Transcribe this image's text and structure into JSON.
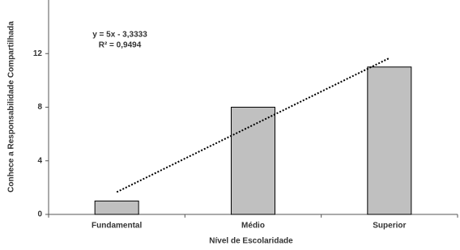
{
  "chart_data": {
    "type": "bar",
    "x_label": "Nível de Escolaridade",
    "y_label": "Conhece a Responsabilidade Compartilhada",
    "categories": [
      "Fundamental",
      "Médio",
      "Superior"
    ],
    "values": [
      1,
      8,
      11
    ],
    "color": "#c0c0c0",
    "ylim": [
      0,
      16
    ],
    "yticks": [
      0,
      4,
      8,
      12
    ],
    "trendline": {
      "slope": 5,
      "intercept": -3.3333,
      "color": "#000000",
      "equation": "y = 5x - 3,3333",
      "r2": "R² = 0,9494"
    }
  }
}
